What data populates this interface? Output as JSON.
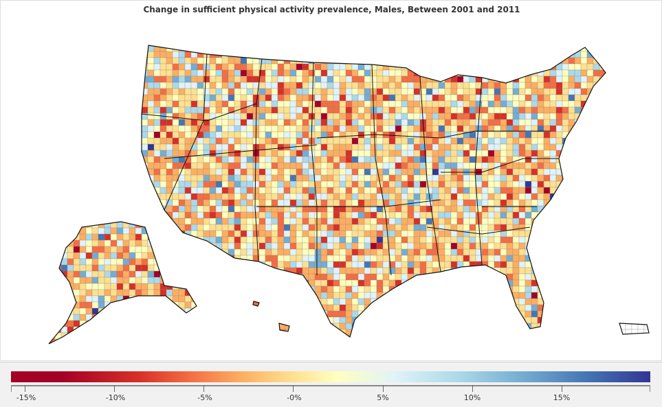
{
  "title": "Change in sufficient physical activity prevalence, Males, Between 2001 and 2011",
  "legend": {
    "ticks": [
      "-15%",
      "-10%",
      "-5%",
      "-0%",
      "5%",
      "10%",
      "15%"
    ],
    "colors": [
      "#a50026",
      "#d73027",
      "#f46d43",
      "#fdae61",
      "#fee090",
      "#ffffbf",
      "#e0f3f8",
      "#abd9e9",
      "#74add1",
      "#4575b4",
      "#313695"
    ]
  }
}
